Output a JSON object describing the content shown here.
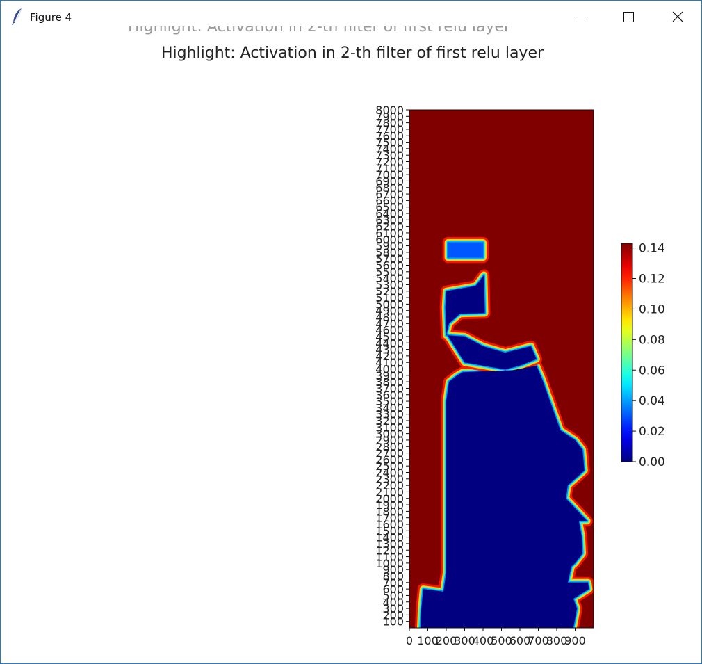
{
  "window": {
    "title": "Figure 4",
    "minimize_icon": "minimize-icon",
    "maximize_icon": "maximize-icon",
    "close_icon": "close-icon",
    "app_icon": "feather-icon"
  },
  "chart_data": {
    "type": "heatmap",
    "title": "Highlight: Activation in 2-th filter of first relu layer",
    "xlabel": "",
    "ylabel": "",
    "x_range": [
      0,
      1000
    ],
    "y_range": [
      0,
      8000
    ],
    "x_ticks": [
      "0",
      "100",
      "200",
      "300",
      "400",
      "500",
      "600",
      "700",
      "800",
      "900"
    ],
    "y_ticks": [
      "100",
      "200",
      "300",
      "400",
      "500",
      "600",
      "700",
      "800",
      "900",
      "1000",
      "1100",
      "1200",
      "1300",
      "1400",
      "1500",
      "1600",
      "1700",
      "1800",
      "1900",
      "2000",
      "2100",
      "2200",
      "2300",
      "2400",
      "2500",
      "2600",
      "2700",
      "2800",
      "2900",
      "3000",
      "3100",
      "3200",
      "3300",
      "3400",
      "3500",
      "3600",
      "3700",
      "3800",
      "3900",
      "4000",
      "4100",
      "4200",
      "4300",
      "4400",
      "4500",
      "4600",
      "4700",
      "4800",
      "4900",
      "5000",
      "5100",
      "5200",
      "5300",
      "5400",
      "5500",
      "5600",
      "5700",
      "5800",
      "5900",
      "6000",
      "6100",
      "6200",
      "6300",
      "6400",
      "6500",
      "6600",
      "6700",
      "6800",
      "6900",
      "7000",
      "7100",
      "7200",
      "7300",
      "7400",
      "7500",
      "7600",
      "7700",
      "7800",
      "7900",
      "8000"
    ],
    "colormap": "jet",
    "colorbar": {
      "min": 0.0,
      "max": 0.143,
      "ticks": [
        "0.00",
        "0.02",
        "0.04",
        "0.06",
        "0.08",
        "0.10",
        "0.12",
        "0.14"
      ]
    },
    "regions": [
      {
        "name": "low-activation-main",
        "value": 0.0,
        "outline_xy": [
          [
            190,
            0
          ],
          [
            890,
            0
          ],
          [
            910,
            300
          ],
          [
            890,
            450
          ],
          [
            975,
            600
          ],
          [
            970,
            700
          ],
          [
            860,
            700
          ],
          [
            880,
            950
          ],
          [
            900,
            1000
          ],
          [
            940,
            1150
          ],
          [
            935,
            1420
          ],
          [
            920,
            1650
          ],
          [
            965,
            1650
          ],
          [
            850,
            2000
          ],
          [
            860,
            2200
          ],
          [
            900,
            2300
          ],
          [
            950,
            2430
          ],
          [
            940,
            2750
          ],
          [
            900,
            2900
          ],
          [
            820,
            3050
          ],
          [
            720,
            3850
          ],
          [
            690,
            4050
          ],
          [
            560,
            3980
          ],
          [
            290,
            3950
          ],
          [
            260,
            3900
          ],
          [
            215,
            3800
          ],
          [
            200,
            3500
          ],
          [
            200,
            850
          ],
          [
            185,
            560
          ],
          [
            75,
            600
          ],
          [
            65,
            300
          ],
          [
            60,
            0
          ]
        ]
      },
      {
        "name": "low-activation-upper-block",
        "value": 0.0,
        "outline_xy": [
          [
            300,
            4100
          ],
          [
            520,
            3990
          ],
          [
            600,
            4050
          ],
          [
            690,
            4150
          ],
          [
            660,
            4350
          ],
          [
            520,
            4250
          ],
          [
            400,
            4350
          ],
          [
            300,
            4500
          ],
          [
            200,
            4520
          ],
          [
            215,
            4700
          ],
          [
            275,
            4850
          ],
          [
            410,
            4860
          ],
          [
            405,
            5450
          ],
          [
            360,
            5280
          ],
          [
            200,
            5200
          ],
          [
            195,
            4950
          ],
          [
            200,
            4550
          ]
        ]
      },
      {
        "name": "mid-activation-band",
        "value": 0.03,
        "outline_xy": [
          [
            210,
            5720
          ],
          [
            400,
            5720
          ],
          [
            400,
            5950
          ],
          [
            210,
            5950
          ]
        ]
      }
    ],
    "background_value": 0.143
  },
  "ghost_title": "Highlight: Activation in 2-th filter of first relu layer"
}
